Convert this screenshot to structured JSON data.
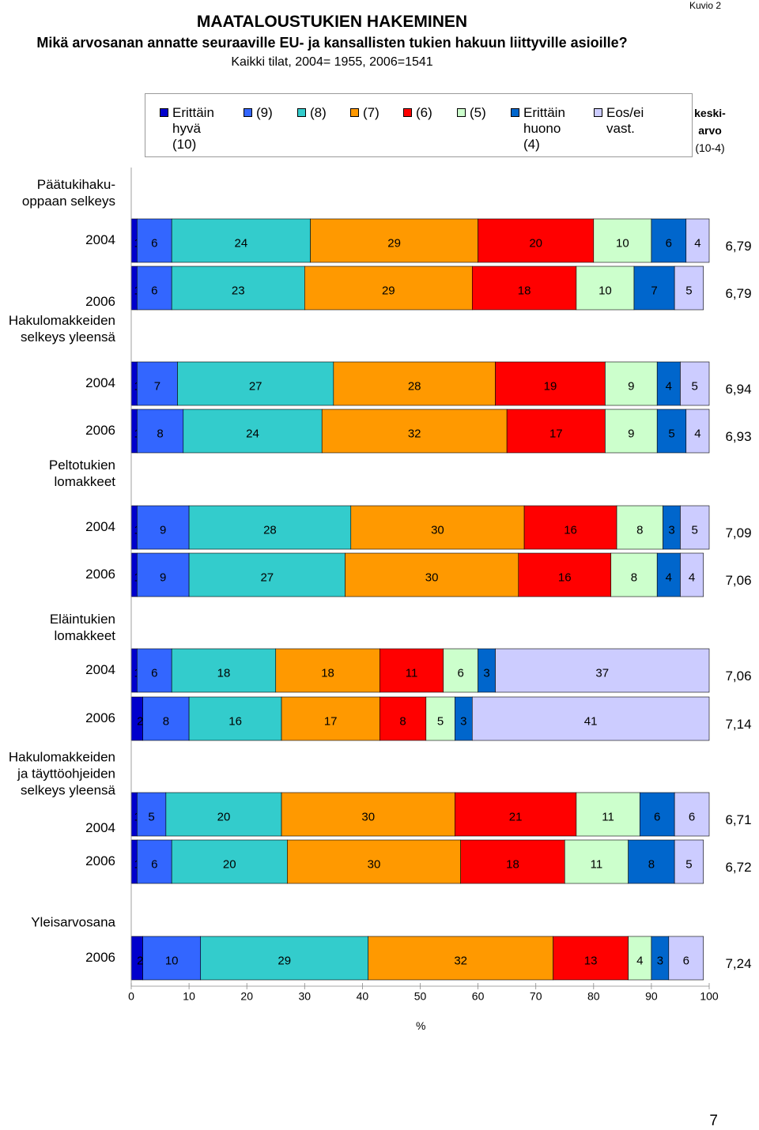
{
  "page": {
    "kuvio": "Kuvio 2",
    "title": "MAATALOUSTUKIEN HAKEMINEN",
    "subtitle": "Mikä arvosanan annatte seuraaville EU- ja kansallisten tukien hakuun liittyville asioille?",
    "subtitle2": "Kaikki tilat, 2004= 1955, 2006=1541",
    "page_number": "7"
  },
  "legend_colors": [
    "#0000cc",
    "#3366ff",
    "#33cccc",
    "#ff9900",
    "#ff0000",
    "#ccffcc",
    "#0066cc",
    "#ccccff"
  ],
  "chart_data": {
    "type": "bar",
    "orientation": "horizontal",
    "stacked": true,
    "xlabel": "%",
    "xlim": [
      0,
      100
    ],
    "xticks": [
      "0",
      "10",
      "20",
      "30",
      "40",
      "50",
      "60",
      "70",
      "80",
      "90",
      "100"
    ],
    "average_header": "keski-\narvo",
    "average_range": "(10-4)",
    "series_names": [
      "Erittäin\nhyvä\n(10)",
      "(9)",
      "(8)",
      "(7)",
      "(6)",
      "(5)",
      "Erittäin\nhuono\n(4)",
      "Eos/ei vast."
    ],
    "groups": [
      {
        "label": "Päätukihaku-\noppaan selkeys",
        "rows": [
          {
            "year": "2004",
            "values": [
              1,
              6,
              24,
              29,
              20,
              10,
              6,
              4
            ],
            "avg": "6,79"
          },
          {
            "year": "2006",
            "values": [
              1,
              6,
              23,
              29,
              18,
              10,
              7,
              5
            ],
            "avg": "6,79"
          }
        ]
      },
      {
        "label": "Hakulomakkeiden\nselkeys yleensä",
        "rows": [
          {
            "year": "2004",
            "values": [
              1,
              7,
              27,
              28,
              19,
              9,
              4,
              5
            ],
            "avg": "6,94"
          },
          {
            "year": "2006",
            "values": [
              1,
              8,
              24,
              32,
              17,
              9,
              5,
              4
            ],
            "avg": "6,93"
          }
        ]
      },
      {
        "label": "Peltotukien\nlomakkeet",
        "rows": [
          {
            "year": "2004",
            "values": [
              1,
              9,
              28,
              30,
              16,
              8,
              3,
              5
            ],
            "avg": "7,09"
          },
          {
            "year": "2006",
            "values": [
              1,
              9,
              27,
              30,
              16,
              8,
              4,
              4
            ],
            "avg": "7,06"
          }
        ]
      },
      {
        "label": "Eläintukien\nlomakkeet",
        "rows": [
          {
            "year": "2004",
            "values": [
              1,
              6,
              18,
              18,
              11,
              6,
              3,
              37
            ],
            "avg": "7,06"
          },
          {
            "year": "2006",
            "values": [
              2,
              8,
              16,
              17,
              8,
              5,
              3,
              41
            ],
            "avg": "7,14"
          }
        ]
      },
      {
        "label": "Hakulomakkeiden\nja täyttöohjeiden\nselkeys yleensä",
        "rows": [
          {
            "year": "2004",
            "values": [
              1,
              5,
              20,
              30,
              21,
              11,
              6,
              6
            ],
            "avg": "6,71"
          },
          {
            "year": "2006",
            "values": [
              1,
              6,
              20,
              30,
              18,
              11,
              8,
              5
            ],
            "avg": "6,72"
          }
        ]
      },
      {
        "label": "Yleisarvosana",
        "rows": [
          {
            "year": "2006",
            "values": [
              2,
              10,
              29,
              32,
              13,
              4,
              3,
              6
            ],
            "avg": "7,24"
          }
        ]
      }
    ]
  }
}
